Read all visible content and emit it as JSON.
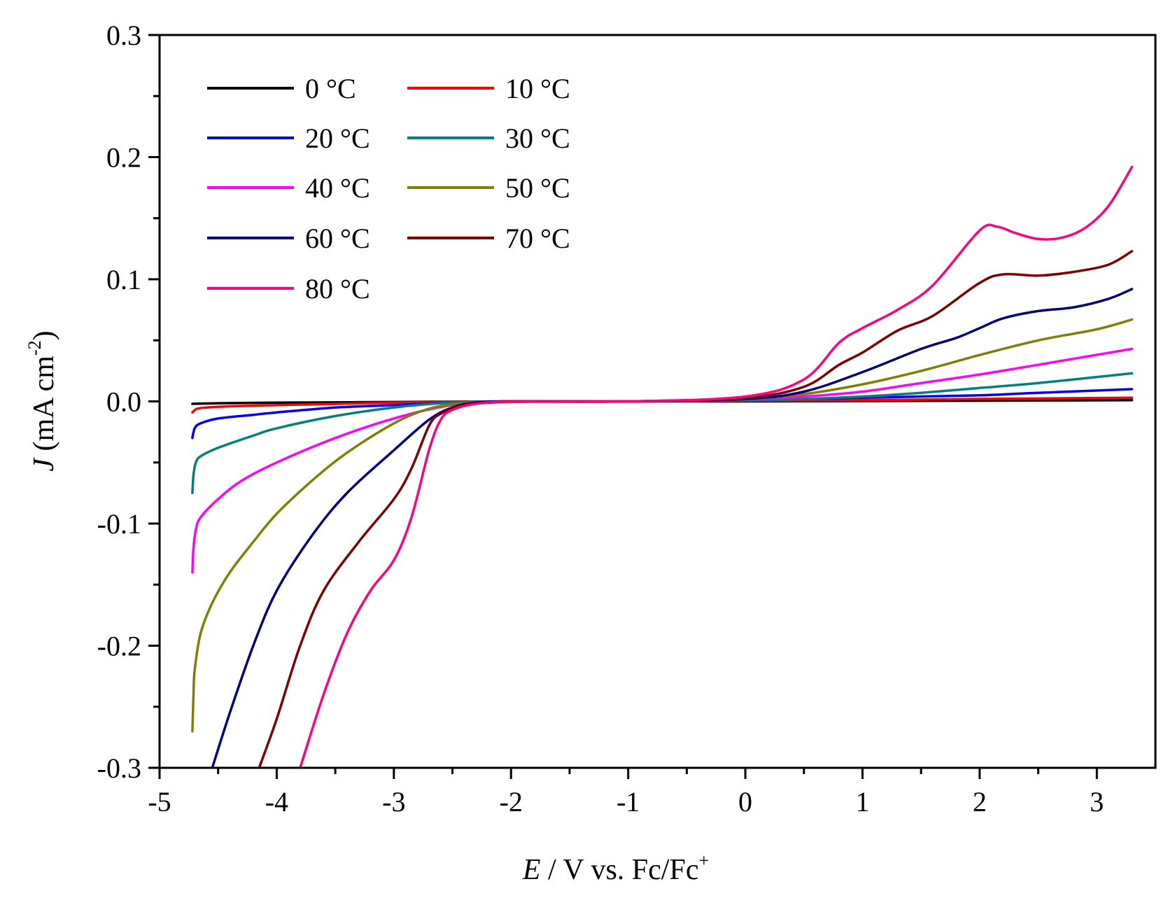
{
  "chart_data": {
    "type": "line",
    "title": "",
    "xlabel": {
      "italic": "E",
      "text": " / V vs. Fc/Fc",
      "sup": "+"
    },
    "ylabel": {
      "italic": "J",
      "text": " (mA cm",
      "sup": "-2",
      "tail": ")"
    },
    "xlim": [
      -5,
      3.5
    ],
    "ylim": [
      -0.3,
      0.3
    ],
    "x_ticks": [
      {
        "value": -5,
        "label": "-5"
      },
      {
        "value": -4,
        "label": "-4"
      },
      {
        "value": -3,
        "label": "-3"
      },
      {
        "value": -2,
        "label": "-2"
      },
      {
        "value": -1,
        "label": "-1"
      },
      {
        "value": 0,
        "label": "0"
      },
      {
        "value": 1,
        "label": "1"
      },
      {
        "value": 2,
        "label": "2"
      },
      {
        "value": 3,
        "label": "3"
      }
    ],
    "y_ticks": [
      {
        "value": -0.3,
        "label": "-0.3"
      },
      {
        "value": -0.2,
        "label": "-0.2"
      },
      {
        "value": -0.1,
        "label": "-0.1"
      },
      {
        "value": 0.0,
        "label": "0.0"
      },
      {
        "value": 0.1,
        "label": "0.1"
      },
      {
        "value": 0.2,
        "label": "0.2"
      },
      {
        "value": 0.3,
        "label": "0.3"
      }
    ],
    "legend_position": "top-left",
    "series": [
      {
        "name": "0 °C",
        "color": "#000000",
        "points": [
          [
            -4.72,
            -0.002
          ],
          [
            -4.5,
            -0.0015
          ],
          [
            -4,
            -0.001
          ],
          [
            -3,
            -0.0005
          ],
          [
            -2,
            0
          ],
          [
            -1,
            0
          ],
          [
            0,
            0
          ],
          [
            1,
            0.0003
          ],
          [
            2,
            0.0006
          ],
          [
            3.3,
            0.001
          ]
        ]
      },
      {
        "name": "10 °C",
        "color": "#ff0000",
        "points": [
          [
            -4.72,
            -0.009
          ],
          [
            -4.68,
            -0.006
          ],
          [
            -4.6,
            -0.005
          ],
          [
            -4.4,
            -0.004
          ],
          [
            -4,
            -0.003
          ],
          [
            -3.5,
            -0.002
          ],
          [
            -3,
            -0.001
          ],
          [
            -2.5,
            -0.0005
          ],
          [
            -2,
            0
          ],
          [
            -1,
            0
          ],
          [
            0,
            0.0005
          ],
          [
            1,
            0.001
          ],
          [
            2,
            0.002
          ],
          [
            3.3,
            0.003
          ]
        ]
      },
      {
        "name": "20 °C",
        "color": "#0000ff",
        "points": [
          [
            -4.72,
            -0.03
          ],
          [
            -4.7,
            -0.022
          ],
          [
            -4.65,
            -0.018
          ],
          [
            -4.5,
            -0.014
          ],
          [
            -4.2,
            -0.011
          ],
          [
            -4,
            -0.009
          ],
          [
            -3.5,
            -0.005
          ],
          [
            -3,
            -0.003
          ],
          [
            -2.5,
            -0.001
          ],
          [
            -2,
            0
          ],
          [
            -1,
            0
          ],
          [
            0,
            0.001
          ],
          [
            0.5,
            0.002
          ],
          [
            1,
            0.003
          ],
          [
            1.5,
            0.004
          ],
          [
            2,
            0.005
          ],
          [
            2.5,
            0.007
          ],
          [
            3.3,
            0.01
          ]
        ]
      },
      {
        "name": "30 °C",
        "color": "#008080",
        "points": [
          [
            -4.72,
            -0.075
          ],
          [
            -4.71,
            -0.06
          ],
          [
            -4.69,
            -0.05
          ],
          [
            -4.65,
            -0.045
          ],
          [
            -4.5,
            -0.038
          ],
          [
            -4.2,
            -0.028
          ],
          [
            -4,
            -0.022
          ],
          [
            -3.5,
            -0.012
          ],
          [
            -3,
            -0.005
          ],
          [
            -2.5,
            -0.001
          ],
          [
            -2,
            0
          ],
          [
            -1,
            0
          ],
          [
            0,
            0.001
          ],
          [
            0.5,
            0.002
          ],
          [
            1,
            0.004
          ],
          [
            1.5,
            0.007
          ],
          [
            2,
            0.011
          ],
          [
            2.5,
            0.015
          ],
          [
            3.3,
            0.023
          ]
        ]
      },
      {
        "name": "40 °C",
        "color": "#ff00ff",
        "points": [
          [
            -4.72,
            -0.14
          ],
          [
            -4.71,
            -0.12
          ],
          [
            -4.69,
            -0.105
          ],
          [
            -4.65,
            -0.095
          ],
          [
            -4.5,
            -0.08
          ],
          [
            -4.3,
            -0.065
          ],
          [
            -4,
            -0.05
          ],
          [
            -3.5,
            -0.03
          ],
          [
            -3,
            -0.014
          ],
          [
            -2.5,
            -0.003
          ],
          [
            -2,
            -0.0005
          ],
          [
            -1.5,
            0
          ],
          [
            -1,
            0
          ],
          [
            0,
            0.002
          ],
          [
            0.5,
            0.004
          ],
          [
            1,
            0.008
          ],
          [
            1.5,
            0.015
          ],
          [
            2,
            0.022
          ],
          [
            2.5,
            0.03
          ],
          [
            3.3,
            0.043
          ]
        ]
      },
      {
        "name": "50 °C",
        "color": "#808000",
        "points": [
          [
            -4.72,
            -0.27
          ],
          [
            -4.71,
            -0.24
          ],
          [
            -4.7,
            -0.22
          ],
          [
            -4.65,
            -0.19
          ],
          [
            -4.55,
            -0.165
          ],
          [
            -4.4,
            -0.14
          ],
          [
            -4.2,
            -0.115
          ],
          [
            -4,
            -0.092
          ],
          [
            -3.7,
            -0.065
          ],
          [
            -3.4,
            -0.042
          ],
          [
            -3,
            -0.018
          ],
          [
            -2.7,
            -0.006
          ],
          [
            -2.4,
            -0.0015
          ],
          [
            -2,
            -0.0003
          ],
          [
            -1.5,
            0
          ],
          [
            -1,
            0
          ],
          [
            -0.5,
            0.0005
          ],
          [
            0,
            0.002
          ],
          [
            0.5,
            0.006
          ],
          [
            1,
            0.014
          ],
          [
            1.5,
            0.025
          ],
          [
            2,
            0.038
          ],
          [
            2.5,
            0.05
          ],
          [
            3,
            0.059
          ],
          [
            3.3,
            0.067
          ]
        ]
      },
      {
        "name": "60 °C",
        "color": "#000080",
        "points": [
          [
            -4.55,
            -0.3
          ],
          [
            -4.4,
            -0.255
          ],
          [
            -4.2,
            -0.2
          ],
          [
            -4,
            -0.155
          ],
          [
            -3.7,
            -0.11
          ],
          [
            -3.4,
            -0.075
          ],
          [
            -3,
            -0.04
          ],
          [
            -2.7,
            -0.015
          ],
          [
            -2.5,
            -0.005
          ],
          [
            -2.3,
            -0.001
          ],
          [
            -2,
            0
          ],
          [
            -1,
            0
          ],
          [
            0,
            0.002
          ],
          [
            0.5,
            0.008
          ],
          [
            1,
            0.024
          ],
          [
            1.5,
            0.043
          ],
          [
            1.8,
            0.052
          ],
          [
            2,
            0.06
          ],
          [
            2.2,
            0.068
          ],
          [
            2.5,
            0.074
          ],
          [
            2.8,
            0.077
          ],
          [
            3.1,
            0.084
          ],
          [
            3.3,
            0.092
          ]
        ]
      },
      {
        "name": "70 °C",
        "color": "#800000",
        "points": [
          [
            -4.15,
            -0.3
          ],
          [
            -4,
            -0.26
          ],
          [
            -3.8,
            -0.2
          ],
          [
            -3.6,
            -0.155
          ],
          [
            -3.3,
            -0.115
          ],
          [
            -3,
            -0.08
          ],
          [
            -2.85,
            -0.055
          ],
          [
            -2.7,
            -0.02
          ],
          [
            -2.6,
            -0.01
          ],
          [
            -2.4,
            -0.003
          ],
          [
            -2.1,
            -0.0005
          ],
          [
            -2,
            0
          ],
          [
            -1,
            0
          ],
          [
            0,
            0.003
          ],
          [
            0.5,
            0.012
          ],
          [
            0.8,
            0.03
          ],
          [
            1,
            0.04
          ],
          [
            1.3,
            0.058
          ],
          [
            1.6,
            0.07
          ],
          [
            2,
            0.097
          ],
          [
            2.2,
            0.104
          ],
          [
            2.5,
            0.103
          ],
          [
            2.8,
            0.106
          ],
          [
            3.1,
            0.112
          ],
          [
            3.3,
            0.123
          ]
        ]
      },
      {
        "name": "80 °C",
        "color": "#ff0080",
        "points": [
          [
            -3.8,
            -0.3
          ],
          [
            -3.6,
            -0.24
          ],
          [
            -3.4,
            -0.19
          ],
          [
            -3.2,
            -0.155
          ],
          [
            -3,
            -0.13
          ],
          [
            -2.85,
            -0.095
          ],
          [
            -2.7,
            -0.04
          ],
          [
            -2.6,
            -0.015
          ],
          [
            -2.5,
            -0.007
          ],
          [
            -2.3,
            -0.002
          ],
          [
            -2,
            -0.0003
          ],
          [
            -1,
            0
          ],
          [
            0,
            0.004
          ],
          [
            0.5,
            0.018
          ],
          [
            0.8,
            0.048
          ],
          [
            1,
            0.06
          ],
          [
            1.3,
            0.075
          ],
          [
            1.6,
            0.095
          ],
          [
            2,
            0.14
          ],
          [
            2.15,
            0.143
          ],
          [
            2.3,
            0.138
          ],
          [
            2.5,
            0.133
          ],
          [
            2.7,
            0.134
          ],
          [
            2.9,
            0.142
          ],
          [
            3.1,
            0.16
          ],
          [
            3.3,
            0.192
          ]
        ]
      }
    ]
  }
}
